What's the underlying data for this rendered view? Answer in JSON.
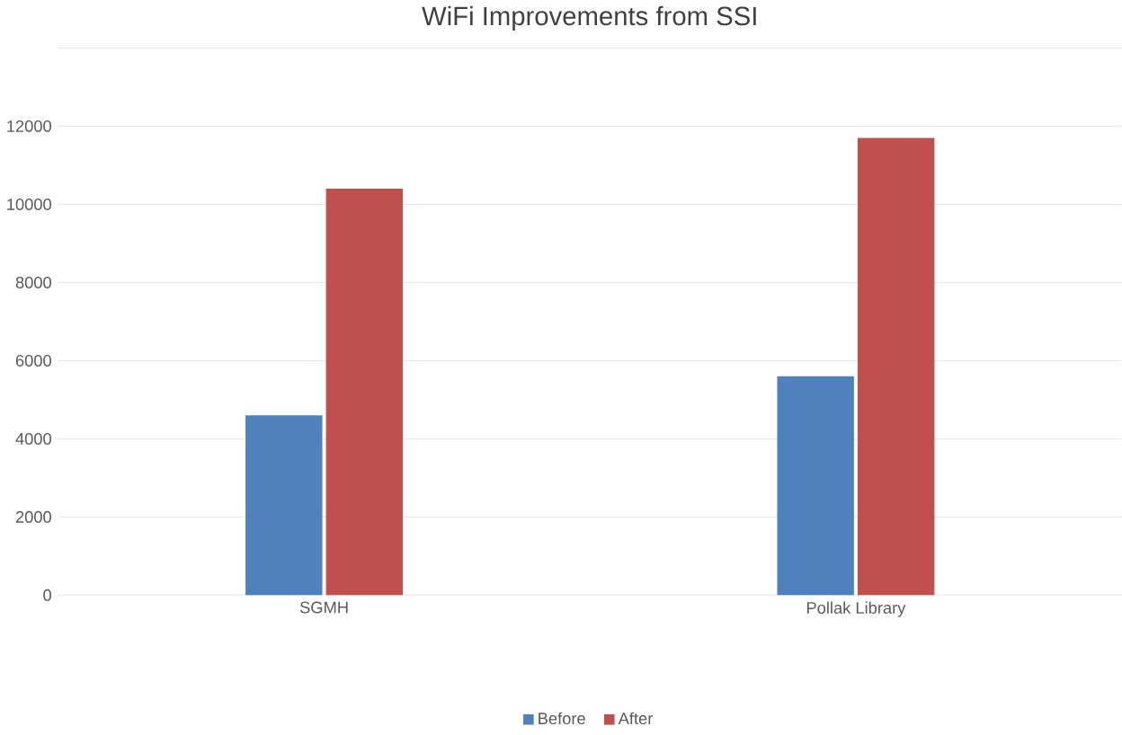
{
  "chart_data": {
    "type": "bar",
    "title": "WiFi Improvements from SSI",
    "categories": [
      "SGMH",
      "Pollak Library"
    ],
    "series": [
      {
        "name": "Before",
        "color": "#4f81bd",
        "values": [
          4600,
          5600
        ]
      },
      {
        "name": "After",
        "color": "#c0504d",
        "values": [
          10400,
          11700
        ]
      }
    ],
    "ylim": [
      0,
      14000
    ],
    "yticks": [
      0,
      2000,
      4000,
      6000,
      8000,
      10000,
      12000,
      {
        "value": 14000,
        "label": null
      }
    ],
    "grid": "y",
    "legend": "bottom"
  }
}
